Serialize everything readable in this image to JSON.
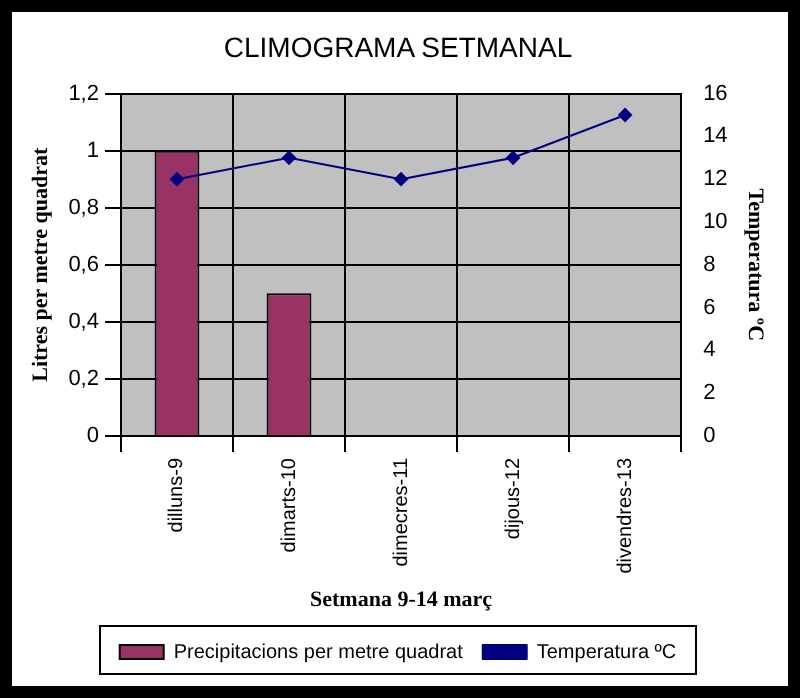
{
  "chart_data": {
    "type": "bar",
    "title": "CLIMOGRAMA SETMANAL",
    "xlabel": "Setmana 9-14 març",
    "ylabel": "Litres per metre quadrat",
    "y2label": "Temperatura ºC",
    "categories": [
      "dilluns-9",
      "dimarts-10",
      "dimecres-11",
      "dijous-12",
      "divendres-13"
    ],
    "series": [
      {
        "name": "Precipitacions per metre quadrat",
        "color": "#993366",
        "values": [
          1,
          0.5,
          0,
          0,
          0
        ]
      },
      {
        "name": "Temperatura ºC",
        "type": "line",
        "axis": "y2",
        "color": "#000080",
        "values": [
          12,
          13,
          12,
          13,
          15
        ]
      }
    ],
    "ylim": [
      0,
      1.2
    ],
    "yticks": [
      0,
      {
        "value": 0.2,
        "label": "0,2"
      },
      {
        "value": 0.4,
        "label": "0,4"
      },
      {
        "value": 0.6,
        "label": "0,6"
      },
      {
        "value": 0.8,
        "label": "0,8"
      },
      1,
      {
        "value": 1.2,
        "label": "1,2"
      }
    ],
    "y2lim": [
      0,
      16
    ],
    "y2ticks": [
      0,
      2,
      4,
      6,
      8,
      10,
      12,
      14,
      16
    ],
    "grid": true,
    "legend": "bottom",
    "marker": "diamond",
    "line_style": "solid"
  }
}
